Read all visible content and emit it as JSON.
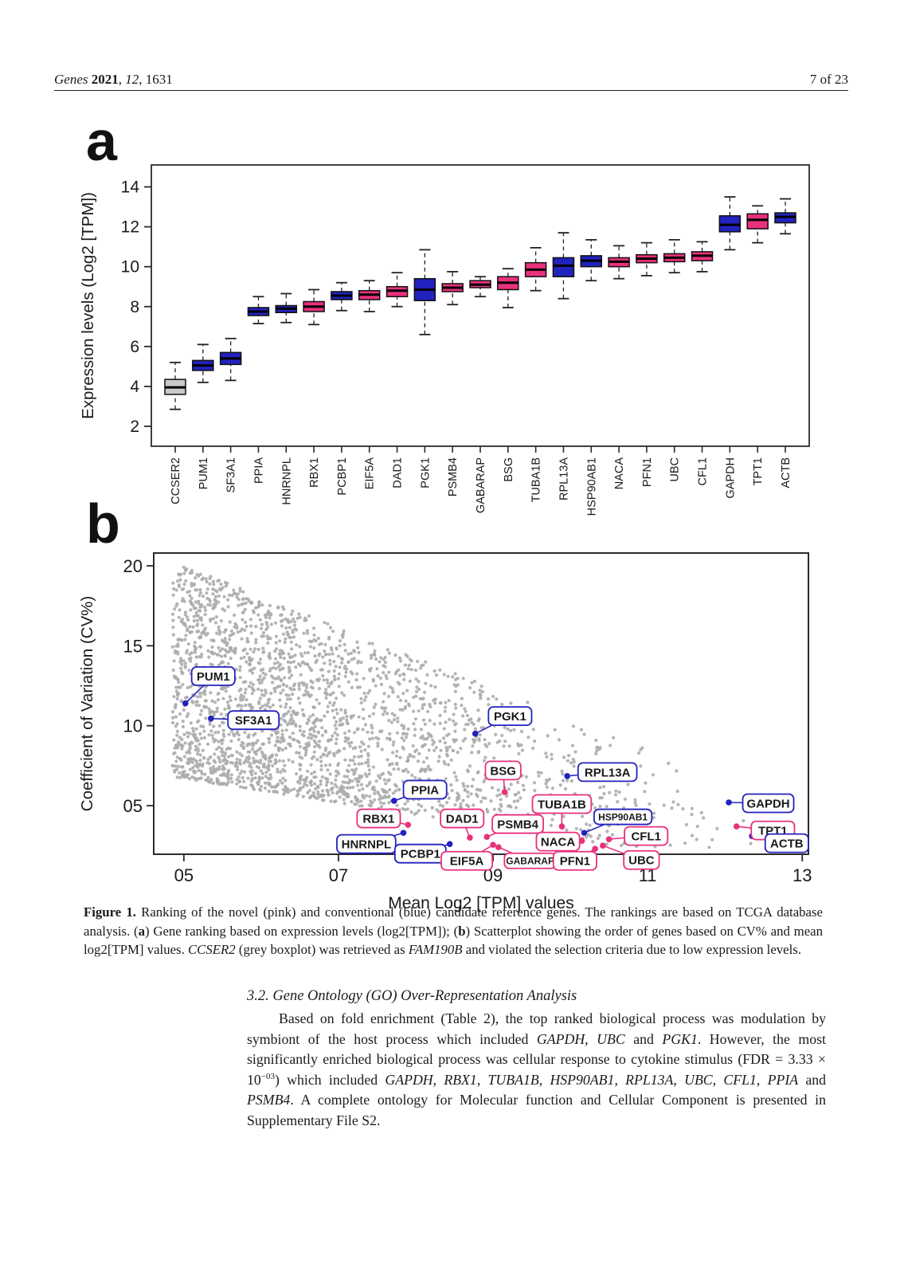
{
  "page": {
    "header": {
      "left_segments": [
        {
          "t": "Genes",
          "i": true
        },
        {
          "t": " "
        },
        {
          "t": "2021",
          "b": true
        },
        {
          "t": ", "
        },
        {
          "t": "12",
          "i": true
        },
        {
          "t": ", 1631"
        }
      ],
      "right": "7 of 23"
    },
    "panel_a_letter": "a",
    "panel_b_letter": "b"
  },
  "colors": {
    "pink": "#E8317C",
    "blue": "#2222BE",
    "grey_box": "#C9C9C9",
    "dot_grey": "#ACACAC",
    "axis": "#2b2b2b"
  },
  "chart_data": [
    {
      "type": "box",
      "panel": "a",
      "ylabel": "Expression levels (Log2 [TPM])",
      "ylim": [
        1.0,
        15.1
      ],
      "yticks": [
        2,
        4,
        6,
        8,
        10,
        12,
        14
      ],
      "grid": false,
      "genes": [
        {
          "name": "CCSER2",
          "group": "grey",
          "lo": 2.85,
          "q1": 3.6,
          "med": 3.95,
          "q3": 4.35,
          "hi": 5.2
        },
        {
          "name": "PUM1",
          "group": "blue",
          "lo": 4.2,
          "q1": 4.8,
          "med": 5.05,
          "q3": 5.3,
          "hi": 6.1
        },
        {
          "name": "SF3A1",
          "group": "blue",
          "lo": 4.3,
          "q1": 5.1,
          "med": 5.4,
          "q3": 5.7,
          "hi": 6.4
        },
        {
          "name": "PPIA",
          "group": "blue",
          "lo": 7.15,
          "q1": 7.55,
          "med": 7.75,
          "q3": 7.95,
          "hi": 8.5
        },
        {
          "name": "HNRNPL",
          "group": "blue",
          "lo": 7.2,
          "q1": 7.7,
          "med": 7.9,
          "q3": 8.05,
          "hi": 8.65
        },
        {
          "name": "RBX1",
          "group": "pink",
          "lo": 7.1,
          "q1": 7.75,
          "med": 8.0,
          "q3": 8.25,
          "hi": 8.85
        },
        {
          "name": "PCBP1",
          "group": "blue",
          "lo": 7.8,
          "q1": 8.35,
          "med": 8.55,
          "q3": 8.75,
          "hi": 9.2
        },
        {
          "name": "EIF5A",
          "group": "pink",
          "lo": 7.75,
          "q1": 8.35,
          "med": 8.6,
          "q3": 8.8,
          "hi": 9.3
        },
        {
          "name": "DAD1",
          "group": "pink",
          "lo": 8.0,
          "q1": 8.5,
          "med": 8.8,
          "q3": 9.0,
          "hi": 9.7
        },
        {
          "name": "PGK1",
          "group": "blue",
          "lo": 6.6,
          "q1": 8.3,
          "med": 8.85,
          "q3": 9.4,
          "hi": 10.85
        },
        {
          "name": "PSMB4",
          "group": "pink",
          "lo": 8.1,
          "q1": 8.75,
          "med": 8.95,
          "q3": 9.15,
          "hi": 9.75
        },
        {
          "name": "GABARAP",
          "group": "pink",
          "lo": 8.5,
          "q1": 8.95,
          "med": 9.1,
          "q3": 9.3,
          "hi": 9.5
        },
        {
          "name": "BSG",
          "group": "pink",
          "lo": 7.95,
          "q1": 8.85,
          "med": 9.2,
          "q3": 9.5,
          "hi": 9.9
        },
        {
          "name": "TUBA1B",
          "group": "pink",
          "lo": 8.8,
          "q1": 9.5,
          "med": 9.85,
          "q3": 10.2,
          "hi": 10.95
        },
        {
          "name": "RPL13A",
          "group": "blue",
          "lo": 8.4,
          "q1": 9.5,
          "med": 10.05,
          "q3": 10.45,
          "hi": 11.7
        },
        {
          "name": "HSP90AB1",
          "group": "blue",
          "lo": 9.3,
          "q1": 10.0,
          "med": 10.3,
          "q3": 10.55,
          "hi": 11.35
        },
        {
          "name": "NACA",
          "group": "pink",
          "lo": 9.4,
          "q1": 10.0,
          "med": 10.25,
          "q3": 10.45,
          "hi": 11.05
        },
        {
          "name": "PFN1",
          "group": "pink",
          "lo": 9.55,
          "q1": 10.2,
          "med": 10.4,
          "q3": 10.6,
          "hi": 11.2
        },
        {
          "name": "UBC",
          "group": "pink",
          "lo": 9.7,
          "q1": 10.25,
          "med": 10.45,
          "q3": 10.65,
          "hi": 11.35
        },
        {
          "name": "CFL1",
          "group": "pink",
          "lo": 9.75,
          "q1": 10.3,
          "med": 10.55,
          "q3": 10.75,
          "hi": 11.25
        },
        {
          "name": "GAPDH",
          "group": "blue",
          "lo": 10.85,
          "q1": 11.75,
          "med": 12.1,
          "q3": 12.55,
          "hi": 13.5
        },
        {
          "name": "TPT1",
          "group": "pink",
          "lo": 11.2,
          "q1": 11.9,
          "med": 12.35,
          "q3": 12.65,
          "hi": 13.05
        },
        {
          "name": "ACTB",
          "group": "blue",
          "lo": 11.65,
          "q1": 12.2,
          "med": 12.5,
          "q3": 12.7,
          "hi": 13.4
        }
      ]
    },
    {
      "type": "scatter",
      "panel": "b",
      "xlabel": "Mean Log2 [TPM] values",
      "ylabel": "Coefficient of Variation (CV%)",
      "xlim": [
        4.61,
        13.08
      ],
      "ylim": [
        1.96,
        20.8
      ],
      "xtick_values": [
        5,
        7,
        9,
        11,
        13
      ],
      "xtick_labels": [
        "05",
        "07",
        "09",
        "11",
        "13"
      ],
      "ytick_values": [
        5,
        10,
        15,
        20
      ],
      "ytick_labels": [
        "05",
        "10",
        "15",
        "20"
      ],
      "grid": false,
      "legend": "none",
      "labeled_points": [
        {
          "name": "PUM1",
          "group": "blue",
          "x": 5.02,
          "y": 11.4,
          "lx": 5.38,
          "ly": 13.1
        },
        {
          "name": "SF3A1",
          "group": "blue",
          "x": 5.35,
          "y": 10.45,
          "lx": 5.9,
          "ly": 10.35
        },
        {
          "name": "PGK1",
          "group": "blue",
          "x": 8.77,
          "y": 9.5,
          "lx": 9.22,
          "ly": 10.6
        },
        {
          "name": "BSG",
          "group": "pink",
          "x": 9.15,
          "y": 5.85,
          "lx": 9.13,
          "ly": 7.2
        },
        {
          "name": "RPL13A",
          "group": "blue",
          "x": 9.96,
          "y": 6.85,
          "lx": 10.48,
          "ly": 7.1
        },
        {
          "name": "PPIA",
          "group": "blue",
          "x": 7.72,
          "y": 5.3,
          "lx": 8.12,
          "ly": 6.0
        },
        {
          "name": "RBX1",
          "group": "pink",
          "x": 7.9,
          "y": 3.8,
          "lx": 7.52,
          "ly": 4.2
        },
        {
          "name": "HNRNPL",
          "group": "blue",
          "x": 7.84,
          "y": 3.3,
          "lx": 7.36,
          "ly": 2.6
        },
        {
          "name": "PCBP1",
          "group": "blue",
          "x": 8.44,
          "y": 2.6,
          "lx": 8.06,
          "ly": 2.0
        },
        {
          "name": "DAD1",
          "group": "pink",
          "x": 8.7,
          "y": 3.0,
          "lx": 8.6,
          "ly": 4.2
        },
        {
          "name": "PSMB4",
          "group": "pink",
          "x": 8.92,
          "y": 3.05,
          "lx": 9.32,
          "ly": 3.85
        },
        {
          "name": "EIF5A",
          "group": "pink",
          "x": 9.0,
          "y": 2.55,
          "lx": 8.66,
          "ly": 1.55
        },
        {
          "name": "GABARAP",
          "group": "pink",
          "x": 9.07,
          "y": 2.4,
          "lx": 9.48,
          "ly": 1.55
        },
        {
          "name": "PFN1",
          "group": "pink",
          "x": 10.32,
          "y": 2.3,
          "lx": 10.06,
          "ly": 1.55
        },
        {
          "name": "UBC",
          "group": "pink",
          "x": 10.42,
          "y": 2.5,
          "lx": 10.92,
          "ly": 1.6
        },
        {
          "name": "NACA",
          "group": "pink",
          "x": 10.15,
          "y": 2.8,
          "lx": 9.84,
          "ly": 2.75
        },
        {
          "name": "CFL1",
          "group": "pink",
          "x": 10.5,
          "y": 2.9,
          "lx": 10.98,
          "ly": 3.1
        },
        {
          "name": "TUBA1B",
          "group": "pink",
          "x": 9.89,
          "y": 3.7,
          "lx": 9.89,
          "ly": 5.1
        },
        {
          "name": "HSP90AB1",
          "group": "blue",
          "x": 10.18,
          "y": 3.3,
          "lx": 10.68,
          "ly": 4.3
        },
        {
          "name": "GAPDH",
          "group": "blue",
          "x": 12.05,
          "y": 5.2,
          "lx": 12.56,
          "ly": 5.15
        },
        {
          "name": "TPT1",
          "group": "pink",
          "x": 12.15,
          "y": 3.7,
          "lx": 12.62,
          "ly": 3.45
        },
        {
          "name": "ACTB",
          "group": "blue",
          "x": 12.35,
          "y": 3.1,
          "lx": 12.8,
          "ly": 2.65
        }
      ],
      "background_cloud": {
        "n": 2550,
        "seed": 13,
        "xmin": 4.85,
        "xmax": 13.0,
        "x_pow": 3.0,
        "upper_intercept": 20.3,
        "upper_slope": 1.92,
        "lower_intercept": 6.8,
        "lower_slope": 0.75,
        "lower_min": 2.35,
        "y_pow": 1.2
      }
    }
  ],
  "caption_segments": [
    {
      "t": "Figure 1.",
      "b": true
    },
    {
      "t": " Ranking of the novel (pink) and conventional (blue) candidate reference genes. The rankings are based on TCGA database analysis. ("
    },
    {
      "t": "a",
      "b": true
    },
    {
      "t": ") Gene ranking based on expression levels (log2[TPM]); ("
    },
    {
      "t": "b",
      "b": true
    },
    {
      "t": ") Scatterplot showing the order of genes based on CV% and mean log2[TPM] values. "
    },
    {
      "t": "CCSER2",
      "i": true
    },
    {
      "t": " (grey boxplot) was retrieved as "
    },
    {
      "t": "FAM190B",
      "i": true
    },
    {
      "t": " and violated the selection criteria due to low expression levels."
    }
  ],
  "section_heading": "3.2. Gene Ontology (GO) Over-Representation Analysis",
  "paragraph_segments": [
    {
      "t": "Based on fold enrichment (Table 2), the top ranked biological process was modulation by symbiont of the host process which included "
    },
    {
      "t": "GAPDH",
      "i": true
    },
    {
      "t": ", "
    },
    {
      "t": "UBC",
      "i": true
    },
    {
      "t": " and "
    },
    {
      "t": "PGK1",
      "i": true
    },
    {
      "t": ". However, the most significantly enriched biological process was cellular response to cytokine stimulus (FDR = 3.33 × 10"
    },
    {
      "t": "−03",
      "sup": true
    },
    {
      "t": ") which included "
    },
    {
      "t": "GAPDH",
      "i": true
    },
    {
      "t": ", "
    },
    {
      "t": "RBX1",
      "i": true
    },
    {
      "t": ", "
    },
    {
      "t": "TUBA1B",
      "i": true
    },
    {
      "t": ", "
    },
    {
      "t": "HSP90AB1",
      "i": true
    },
    {
      "t": ", "
    },
    {
      "t": "RPL13A",
      "i": true
    },
    {
      "t": ", "
    },
    {
      "t": "UBC",
      "i": true
    },
    {
      "t": ", "
    },
    {
      "t": "CFL1",
      "i": true
    },
    {
      "t": ", "
    },
    {
      "t": "PPIA",
      "i": true
    },
    {
      "t": " and "
    },
    {
      "t": "PSMB4",
      "i": true
    },
    {
      "t": ". A complete ontology for Molecular function and Cellular Component is presented in Supplementary File S2."
    }
  ]
}
